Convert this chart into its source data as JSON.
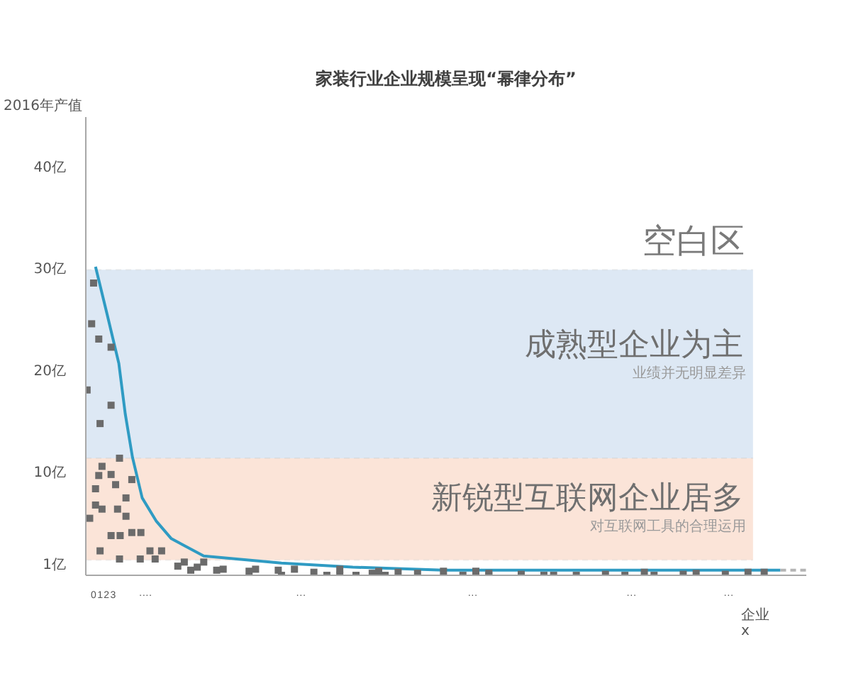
{
  "chart_data": {
    "type": "scatter",
    "title": "家装行业企业规模呈现“幂律分布”",
    "ylabel": "2016年产值",
    "xlabel": "企业\nx",
    "xlim": [
      -1.2,
      110
    ],
    "ylim": [
      0,
      45
    ],
    "xticks": [
      0,
      1,
      2,
      3,
      {
        "value": 8,
        "label": "····"
      },
      {
        "value": 32,
        "label": "···"
      },
      {
        "value": 58.5,
        "label": "···"
      },
      {
        "value": 83,
        "label": "···"
      },
      {
        "value": 98,
        "label": "···"
      }
    ],
    "yticks": [
      {
        "value": 1,
        "label": "1亿"
      },
      {
        "value": 10,
        "label": "10亿"
      },
      {
        "value": 20,
        "label": "20亿"
      },
      {
        "value": 30,
        "label": "30亿"
      },
      {
        "value": 40,
        "label": "40亿"
      }
    ],
    "bands": [
      {
        "axis": "y",
        "from": 11.5,
        "to": 30,
        "label": "成熟型企业为主",
        "color": "#dde8f4"
      },
      {
        "axis": "y",
        "from": 1.5,
        "to": 11.5,
        "label": "新锐型互联网企业居多",
        "color": "#fbe4d8"
      }
    ],
    "annotations": [
      "空白区",
      "业绩并无明显差异",
      "对互联网工具的合理运用"
    ],
    "series": [
      {
        "type": "line",
        "color": "#2f9bc3",
        "x": [
          0.3,
          2.1,
          3.9,
          4.9,
          6,
          7.5,
          9.7,
          12,
          17,
          29,
          40,
          54,
          106
        ],
        "values": [
          30.3,
          25.6,
          20.8,
          15.8,
          11.6,
          7.6,
          5.3,
          3.6,
          1.9,
          1.2,
          0.8,
          0.5,
          0.5
        ]
      },
      {
        "type": "line",
        "color": "#b4b4b4",
        "line_style": "dashed",
        "x": [
          106,
          110
        ],
        "values": [
          0.5,
          0.5
        ]
      },
      {
        "color": "#6b6b6b",
        "marker": "square",
        "x": [
          0,
          -0.3,
          0.8,
          2.7,
          -1,
          2.7,
          1,
          4,
          1.3,
          0.8,
          2.7,
          3.4,
          5.9,
          0.3,
          5,
          0.3,
          1.3,
          3.7,
          -0.6,
          5,
          2.7,
          4.1,
          5.9,
          7.3,
          1,
          8.7,
          10.5,
          4,
          7.2,
          9.5,
          13,
          14,
          15,
          16,
          17,
          19,
          20,
          24,
          25,
          28.5,
          29,
          31,
          34,
          36,
          38,
          38,
          40.5,
          43,
          44,
          45,
          47,
          50,
          54,
          57,
          59,
          61,
          61,
          66,
          69.5,
          71,
          74.5,
          79,
          82,
          85,
          86.5,
          91,
          93,
          97.5,
          101,
          103.5
        ],
        "values": [
          28.7,
          24.7,
          23.2,
          22.4,
          18.2,
          16.7,
          14.9,
          11.5,
          10.7,
          9.8,
          9.9,
          8.9,
          9.4,
          8.5,
          7.6,
          6.9,
          6.5,
          6.5,
          5.6,
          5.8,
          3.9,
          3.9,
          4.2,
          4.2,
          2.4,
          2.4,
          2.4,
          1.6,
          1.6,
          1.6,
          0.9,
          1.3,
          0.5,
          0.8,
          1.3,
          0.5,
          0.6,
          0.4,
          0.6,
          0.5,
          0,
          0.6,
          0.3,
          0,
          0.6,
          0,
          0,
          0.2,
          0.4,
          0,
          0.3,
          0.2,
          0.4,
          0,
          0.4,
          0.2,
          0,
          0.1,
          0,
          0,
          0,
          0.1,
          0,
          0.3,
          0,
          0.1,
          0.2,
          0.1,
          0.3,
          0.3
        ]
      }
    ]
  }
}
